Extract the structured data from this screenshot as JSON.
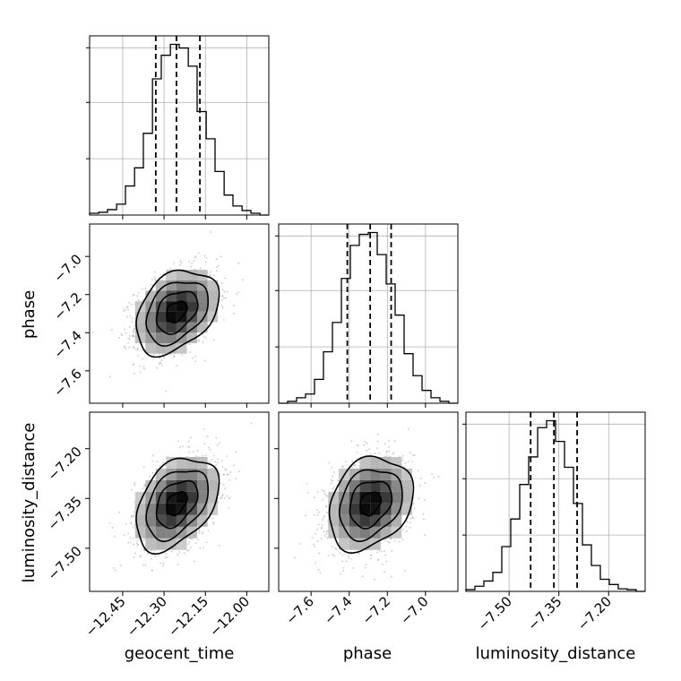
{
  "chart_data": {
    "type": "corner",
    "parameters": [
      "geocent_time",
      "phase",
      "luminosity_distance"
    ],
    "ranges": {
      "geocent_time": [
        -12.57,
        -11.92
      ],
      "phase": [
        -7.77,
        -6.83
      ],
      "luminosity_distance": [
        -7.63,
        -7.09
      ]
    },
    "ticks": {
      "geocent_time": [
        -12.45,
        -12.3,
        -12.15,
        -12.0
      ],
      "phase": [
        -7.6,
        -7.4,
        -7.2,
        -7.0
      ],
      "luminosity_distance": [
        -7.5,
        -7.35,
        -7.2
      ]
    },
    "tick_labels": {
      "geocent_time": [
        "−12.45",
        "−12.30",
        "−12.15",
        "−12.00"
      ],
      "phase": [
        "−7.6",
        "−7.4",
        "−7.2",
        "−7.0"
      ],
      "luminosity_distance": [
        "−7.50",
        "−7.35",
        "−7.20"
      ]
    },
    "axis_labels": {
      "geocent_time": "geocent_time",
      "phase": "phase",
      "luminosity_distance": "luminosity_distance"
    },
    "quantiles": {
      "geocent_time": [
        -12.33,
        -12.255,
        -12.17
      ],
      "phase": [
        -7.41,
        -7.29,
        -7.18
      ],
      "luminosity_distance": [
        -7.435,
        -7.365,
        -7.295
      ]
    },
    "histograms": {
      "geocent_time": {
        "edges": [
          -12.57,
          -12.537,
          -12.505,
          -12.472,
          -12.44,
          -12.407,
          -12.375,
          -12.342,
          -12.31,
          -12.277,
          -12.245,
          -12.212,
          -12.18,
          -12.147,
          -12.115,
          -12.082,
          -12.05,
          -12.017,
          -11.985,
          -11.952,
          -11.92
        ],
        "counts": [
          0.01,
          0.015,
          0.03,
          0.06,
          0.16,
          0.26,
          0.45,
          0.75,
          0.88,
          0.94,
          0.92,
          0.82,
          0.57,
          0.42,
          0.24,
          0.11,
          0.05,
          0.025,
          0.01,
          0.0
        ]
      },
      "phase": {
        "edges": [
          -7.77,
          -7.723,
          -7.676,
          -7.629,
          -7.582,
          -7.535,
          -7.488,
          -7.441,
          -7.394,
          -7.347,
          -7.3,
          -7.253,
          -7.206,
          -7.159,
          -7.112,
          -7.065,
          -7.018,
          -6.971,
          -6.924,
          -6.877,
          -6.83
        ],
        "counts": [
          0.0,
          0.01,
          0.03,
          0.05,
          0.13,
          0.28,
          0.44,
          0.68,
          0.86,
          0.92,
          0.93,
          0.81,
          0.65,
          0.48,
          0.27,
          0.15,
          0.07,
          0.03,
          0.01,
          0.0
        ]
      },
      "luminosity_distance": {
        "edges": [
          -7.63,
          -7.603,
          -7.576,
          -7.549,
          -7.522,
          -7.495,
          -7.468,
          -7.441,
          -7.414,
          -7.387,
          -7.36,
          -7.333,
          -7.306,
          -7.279,
          -7.252,
          -7.225,
          -7.198,
          -7.171,
          -7.144,
          -7.117,
          -7.09
        ],
        "counts": [
          0.01,
          0.03,
          0.06,
          0.11,
          0.26,
          0.42,
          0.62,
          0.78,
          0.95,
          0.99,
          0.87,
          0.72,
          0.51,
          0.27,
          0.15,
          0.07,
          0.04,
          0.015,
          0.01,
          0.0
        ]
      }
    },
    "pairs": [
      {
        "x": "geocent_time",
        "y": "phase",
        "center": [
          -12.255,
          -7.29
        ],
        "sd": [
          0.075,
          0.11
        ],
        "rho": 0.35
      },
      {
        "x": "geocent_time",
        "y": "luminosity_distance",
        "center": [
          -12.255,
          -7.365
        ],
        "sd": [
          0.075,
          0.07
        ],
        "rho": 0.4
      },
      {
        "x": "phase",
        "y": "luminosity_distance",
        "center": [
          -7.29,
          -7.365
        ],
        "sd": [
          0.11,
          0.07
        ],
        "rho": 0.25
      }
    ],
    "density_levels_sigma": [
      0.5,
      1.0,
      1.5,
      2.0
    ],
    "grid": true,
    "colors": {
      "line": "#000000",
      "grid": "#b0b0b0",
      "scatter": "#9a9a9a",
      "density_dark": "#000000",
      "density_light": "#e8e8e8"
    }
  }
}
